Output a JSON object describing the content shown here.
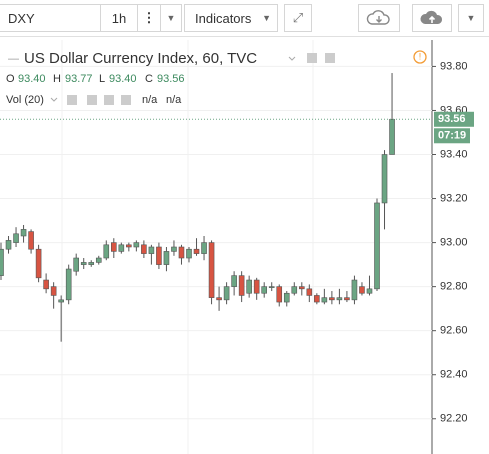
{
  "toolbar": {
    "symbol": "DXY",
    "interval": "1h",
    "indicators": "Indicators"
  },
  "chart_data": {
    "type": "candlestick",
    "title": "US Dollar Currency Index, 60, TVC",
    "legend": {
      "o_label": "O",
      "o": "93.40",
      "h_label": "H",
      "h": "93.77",
      "l_label": "L",
      "l": "93.40",
      "c_label": "C",
      "c": "93.56"
    },
    "volume_label": "Vol (20)",
    "volume_values": [
      "n/a",
      "n/a"
    ],
    "open": [
      92.85,
      92.97,
      93.0,
      93.03,
      93.05,
      92.97,
      92.83,
      92.8,
      92.73,
      92.74,
      92.87,
      92.9,
      92.9,
      92.91,
      92.93,
      93.0,
      92.96,
      92.99,
      92.98,
      92.99,
      92.95,
      92.98,
      92.9,
      92.96,
      92.98,
      92.93,
      92.97,
      92.95,
      93.0,
      92.75,
      92.74,
      92.8,
      92.85,
      92.77,
      92.83,
      92.77,
      92.8,
      92.8,
      92.73,
      92.77,
      92.8,
      92.79,
      92.76,
      92.73,
      92.75,
      92.74,
      92.75,
      92.74,
      92.8,
      92.77,
      92.79,
      93.18,
      93.4
    ],
    "high": [
      93.0,
      93.03,
      93.07,
      93.08,
      93.06,
      92.99,
      92.86,
      92.82,
      92.76,
      92.9,
      92.95,
      92.93,
      92.92,
      92.94,
      93.01,
      93.02,
      93.0,
      93.0,
      93.01,
      93.01,
      92.99,
      93.0,
      92.98,
      93.01,
      92.99,
      92.98,
      93.02,
      93.03,
      93.01,
      92.8,
      92.82,
      92.87,
      92.87,
      92.85,
      92.84,
      92.82,
      92.82,
      92.81,
      92.78,
      92.82,
      92.82,
      92.81,
      92.77,
      92.79,
      92.78,
      92.79,
      92.78,
      92.85,
      92.82,
      92.85,
      93.2,
      93.42,
      93.77
    ],
    "low": [
      92.83,
      92.95,
      92.98,
      93.0,
      92.95,
      92.82,
      92.77,
      92.7,
      92.55,
      92.72,
      92.85,
      92.88,
      92.89,
      92.9,
      92.92,
      92.93,
      92.95,
      92.96,
      92.96,
      92.93,
      92.9,
      92.88,
      92.87,
      92.94,
      92.9,
      92.91,
      92.94,
      92.92,
      92.72,
      92.69,
      92.72,
      92.76,
      92.73,
      92.75,
      92.74,
      92.75,
      92.78,
      92.71,
      92.71,
      92.76,
      92.76,
      92.73,
      92.72,
      92.72,
      92.72,
      92.72,
      92.73,
      92.72,
      92.76,
      92.76,
      92.78,
      93.06,
      93.4
    ],
    "close": [
      92.97,
      93.01,
      93.04,
      93.06,
      92.97,
      92.84,
      92.79,
      92.76,
      92.74,
      92.88,
      92.93,
      92.91,
      92.91,
      92.93,
      92.99,
      92.96,
      92.99,
      92.98,
      93.0,
      92.95,
      92.98,
      92.9,
      92.96,
      92.98,
      92.93,
      92.97,
      92.95,
      93.0,
      92.75,
      92.74,
      92.8,
      92.85,
      92.76,
      92.83,
      92.77,
      92.8,
      92.8,
      92.73,
      92.77,
      92.8,
      92.79,
      92.76,
      92.73,
      92.75,
      92.74,
      92.75,
      92.74,
      92.83,
      92.77,
      92.79,
      93.18,
      93.4,
      93.56
    ],
    "up_color": "#6ba583",
    "down_color": "#d75442",
    "ylim": [
      92.04,
      93.92
    ],
    "yticks": [
      {
        "value": 93.8,
        "label": "93.80"
      },
      {
        "value": 93.6,
        "label": "93.60"
      },
      {
        "value": 93.4,
        "label": "93.40"
      },
      {
        "value": 93.2,
        "label": "93.20"
      },
      {
        "value": 93.0,
        "label": "93.00"
      },
      {
        "value": 92.8,
        "label": "92.80"
      },
      {
        "value": 92.6,
        "label": "92.60"
      },
      {
        "value": 92.4,
        "label": "92.40"
      },
      {
        "value": 92.2,
        "label": "92.20"
      }
    ],
    "grid": true,
    "last_price": {
      "value": 93.56,
      "label": "93.56"
    },
    "countdown": "07:19"
  }
}
